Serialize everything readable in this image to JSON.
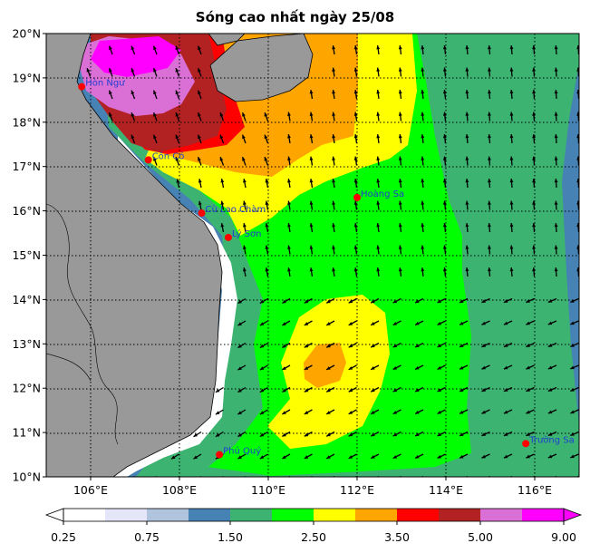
{
  "title": "Sóng cao nhất ngày 25/08",
  "axes": {
    "lat_labels": [
      "20°N",
      "19°N",
      "18°N",
      "17°N",
      "16°N",
      "15°N",
      "14°N",
      "13°N",
      "12°N",
      "11°N",
      "10°N"
    ],
    "lon_labels": [
      "106°E",
      "108°E",
      "110°E",
      "112°E",
      "114°E",
      "116°E"
    ]
  },
  "colorbar": {
    "colors": [
      "#ffffff",
      "#e6e6fa",
      "#b0c4de",
      "#4682b4",
      "#3cb371",
      "#00ff00",
      "#ffff00",
      "#ffa500",
      "#ff0000",
      "#b22222",
      "#da70d6",
      "#ff00ff"
    ],
    "tick_labels": [
      "0.25",
      "0.75",
      "1.50",
      "2.50",
      "3.50",
      "5.00",
      "9.00"
    ]
  },
  "stations": [
    {
      "name": "Hòn Ngư",
      "lon": 105.8,
      "lat": 18.8
    },
    {
      "name": "Cồn Cỏ",
      "lon": 107.3,
      "lat": 17.15
    },
    {
      "name": "Cù Lao Chàm",
      "lon": 108.5,
      "lat": 15.95
    },
    {
      "name": "Lý Sơn",
      "lon": 109.1,
      "lat": 15.4
    },
    {
      "name": "Hoàng Sa",
      "lon": 112.0,
      "lat": 16.3
    },
    {
      "name": "Phú Quý",
      "lon": 108.9,
      "lat": 10.5
    },
    {
      "name": "Trường Sa",
      "lon": 115.8,
      "lat": 10.75
    }
  ],
  "map": {
    "lon_range": [
      105,
      117
    ],
    "lat_range": [
      10,
      20
    ],
    "grid": true,
    "land_color": "#999999"
  }
}
